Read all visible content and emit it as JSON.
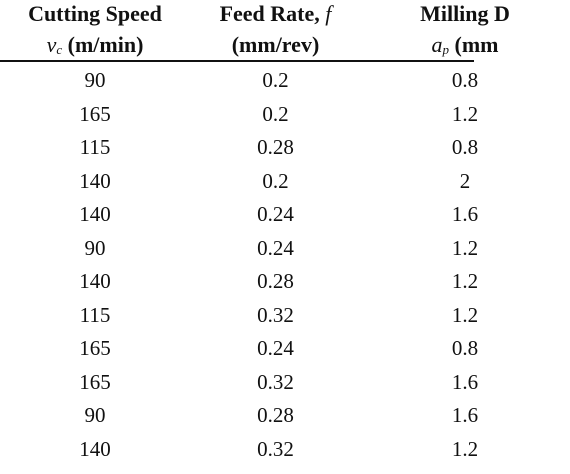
{
  "table": {
    "headers": [
      {
        "line1": "Cutting Speed",
        "line2_symbol": "v",
        "line2_subscript": "c",
        "line2_unit": " (m/min)"
      },
      {
        "line1_text": "Feed Rate, ",
        "line1_symbol": "f",
        "line2_unit": "(mm/rev)"
      },
      {
        "line1": "Milling D",
        "line2_symbol": "a",
        "line2_subscript": "p",
        "line2_unit": " (mm"
      }
    ],
    "rows": [
      [
        "90",
        "0.2",
        "0.8"
      ],
      [
        "165",
        "0.2",
        "1.2"
      ],
      [
        "115",
        "0.28",
        "0.8"
      ],
      [
        "140",
        "0.2",
        "2"
      ],
      [
        "140",
        "0.24",
        "1.6"
      ],
      [
        "90",
        "0.24",
        "1.2"
      ],
      [
        "140",
        "0.28",
        "1.2"
      ],
      [
        "115",
        "0.32",
        "1.2"
      ],
      [
        "165",
        "0.24",
        "0.8"
      ],
      [
        "165",
        "0.32",
        "1.6"
      ],
      [
        "90",
        "0.28",
        "1.6"
      ],
      [
        "140",
        "0.32",
        "1.2"
      ]
    ]
  }
}
